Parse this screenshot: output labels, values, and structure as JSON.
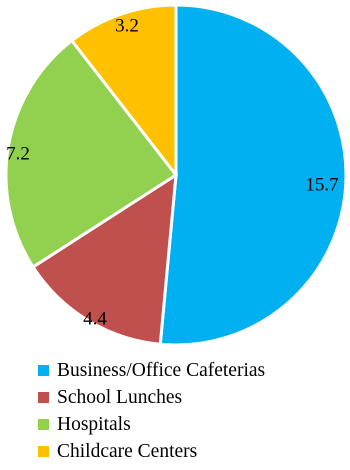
{
  "chart_data": {
    "type": "pie",
    "title": "",
    "categories": [
      "Business/Office Cafeterias",
      "School Lunches",
      "Hospitals",
      "Childcare Centers"
    ],
    "values": [
      15.7,
      4.4,
      7.2,
      3.2
    ],
    "value_labels": [
      "15.7",
      "4.4",
      "7.2",
      "3.2"
    ],
    "colors": [
      "#00B0F0",
      "#C0504D",
      "#92D050",
      "#FFC000"
    ],
    "start_angle": "12 o'clock",
    "direction": "clockwise",
    "slice_border_color": "#ffffff",
    "legend": {
      "position": "bottom",
      "entries": [
        "Business/Office Cafeterias",
        "School Lunches",
        "Hospitals",
        "Childcare Centers"
      ]
    }
  }
}
